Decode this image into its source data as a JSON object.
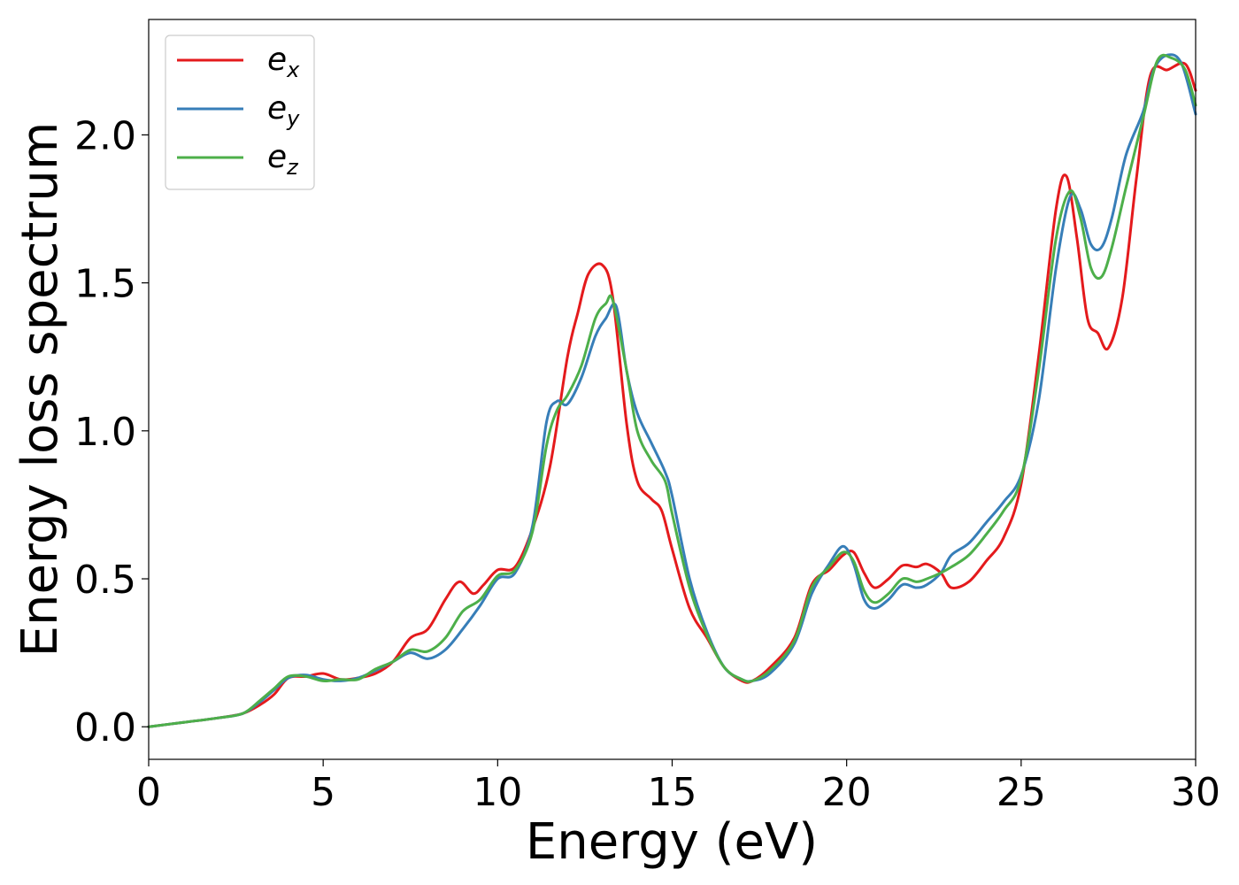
{
  "chart_data": {
    "type": "line",
    "title": "",
    "xlabel": "Energy (eV)",
    "ylabel": "Energy loss spectrum",
    "xlim": [
      0,
      30
    ],
    "ylim": [
      -0.11,
      2.39
    ],
    "xticks": [
      0,
      5,
      10,
      15,
      20,
      25,
      30
    ],
    "xtick_labels": [
      "0",
      "5",
      "10",
      "15",
      "20",
      "25",
      "30"
    ],
    "yticks": [
      0.0,
      0.5,
      1.0,
      1.5,
      2.0
    ],
    "ytick_labels": [
      "0.0",
      "0.5",
      "1.0",
      "1.5",
      "2.0"
    ],
    "grid": false,
    "legend_position": "top-left",
    "series": [
      {
        "name": "e_x",
        "label_main": "e",
        "label_sub": "x",
        "color": "#e41a1c",
        "points": [
          [
            0,
            0.0
          ],
          [
            1,
            0.015
          ],
          [
            2,
            0.03
          ],
          [
            2.7,
            0.045
          ],
          [
            3.2,
            0.075
          ],
          [
            3.6,
            0.11
          ],
          [
            4.0,
            0.165
          ],
          [
            4.5,
            0.17
          ],
          [
            5.0,
            0.18
          ],
          [
            5.5,
            0.16
          ],
          [
            6.0,
            0.165
          ],
          [
            6.5,
            0.18
          ],
          [
            7.0,
            0.22
          ],
          [
            7.5,
            0.3
          ],
          [
            8.0,
            0.33
          ],
          [
            8.5,
            0.43
          ],
          [
            8.9,
            0.49
          ],
          [
            9.3,
            0.45
          ],
          [
            9.6,
            0.48
          ],
          [
            10.0,
            0.53
          ],
          [
            10.5,
            0.54
          ],
          [
            11.0,
            0.67
          ],
          [
            11.5,
            0.88
          ],
          [
            12.0,
            1.25
          ],
          [
            12.3,
            1.4
          ],
          [
            12.6,
            1.53
          ],
          [
            13.0,
            1.56
          ],
          [
            13.3,
            1.45
          ],
          [
            13.7,
            1.02
          ],
          [
            14.0,
            0.83
          ],
          [
            14.4,
            0.77
          ],
          [
            14.7,
            0.73
          ],
          [
            15.0,
            0.6
          ],
          [
            15.5,
            0.4
          ],
          [
            16.0,
            0.3
          ],
          [
            16.5,
            0.2
          ],
          [
            17.0,
            0.155
          ],
          [
            17.3,
            0.155
          ],
          [
            17.8,
            0.2
          ],
          [
            18.5,
            0.3
          ],
          [
            19.0,
            0.48
          ],
          [
            19.5,
            0.53
          ],
          [
            19.9,
            0.58
          ],
          [
            20.2,
            0.59
          ],
          [
            20.5,
            0.52
          ],
          [
            20.8,
            0.47
          ],
          [
            21.2,
            0.5
          ],
          [
            21.6,
            0.545
          ],
          [
            22.0,
            0.54
          ],
          [
            22.3,
            0.55
          ],
          [
            22.7,
            0.52
          ],
          [
            23.0,
            0.47
          ],
          [
            23.5,
            0.49
          ],
          [
            24.0,
            0.56
          ],
          [
            24.5,
            0.64
          ],
          [
            25.0,
            0.82
          ],
          [
            25.5,
            1.25
          ],
          [
            26.0,
            1.75
          ],
          [
            26.3,
            1.86
          ],
          [
            26.6,
            1.65
          ],
          [
            26.9,
            1.38
          ],
          [
            27.2,
            1.33
          ],
          [
            27.5,
            1.28
          ],
          [
            27.9,
            1.45
          ],
          [
            28.3,
            1.85
          ],
          [
            28.7,
            2.2
          ],
          [
            29.2,
            2.22
          ],
          [
            29.7,
            2.24
          ],
          [
            30.0,
            2.15
          ]
        ]
      },
      {
        "name": "e_y",
        "label_main": "e",
        "label_sub": "y",
        "color": "#377eb8",
        "points": [
          [
            0,
            0.0
          ],
          [
            1,
            0.015
          ],
          [
            2,
            0.03
          ],
          [
            2.7,
            0.045
          ],
          [
            3.2,
            0.085
          ],
          [
            3.6,
            0.125
          ],
          [
            4.0,
            0.165
          ],
          [
            4.5,
            0.175
          ],
          [
            5.0,
            0.16
          ],
          [
            5.5,
            0.155
          ],
          [
            6.0,
            0.165
          ],
          [
            6.5,
            0.19
          ],
          [
            7.0,
            0.22
          ],
          [
            7.5,
            0.25
          ],
          [
            8.0,
            0.23
          ],
          [
            8.5,
            0.26
          ],
          [
            9.0,
            0.33
          ],
          [
            9.5,
            0.41
          ],
          [
            10.0,
            0.5
          ],
          [
            10.5,
            0.52
          ],
          [
            11.0,
            0.68
          ],
          [
            11.4,
            1.03
          ],
          [
            11.7,
            1.1
          ],
          [
            12.0,
            1.09
          ],
          [
            12.4,
            1.18
          ],
          [
            12.8,
            1.32
          ],
          [
            13.1,
            1.38
          ],
          [
            13.4,
            1.42
          ],
          [
            13.7,
            1.2
          ],
          [
            14.0,
            1.06
          ],
          [
            14.4,
            0.96
          ],
          [
            14.8,
            0.86
          ],
          [
            15.0,
            0.78
          ],
          [
            15.5,
            0.5
          ],
          [
            16.0,
            0.32
          ],
          [
            16.5,
            0.2
          ],
          [
            17.0,
            0.16
          ],
          [
            17.3,
            0.155
          ],
          [
            17.8,
            0.18
          ],
          [
            18.5,
            0.28
          ],
          [
            19.0,
            0.45
          ],
          [
            19.5,
            0.55
          ],
          [
            19.9,
            0.61
          ],
          [
            20.2,
            0.55
          ],
          [
            20.5,
            0.43
          ],
          [
            20.8,
            0.4
          ],
          [
            21.2,
            0.43
          ],
          [
            21.6,
            0.48
          ],
          [
            22.0,
            0.47
          ],
          [
            22.3,
            0.48
          ],
          [
            22.7,
            0.52
          ],
          [
            23.0,
            0.58
          ],
          [
            23.5,
            0.62
          ],
          [
            24.0,
            0.69
          ],
          [
            24.5,
            0.76
          ],
          [
            25.0,
            0.85
          ],
          [
            25.5,
            1.1
          ],
          [
            26.0,
            1.55
          ],
          [
            26.4,
            1.79
          ],
          [
            26.7,
            1.75
          ],
          [
            27.0,
            1.63
          ],
          [
            27.3,
            1.62
          ],
          [
            27.6,
            1.72
          ],
          [
            28.0,
            1.93
          ],
          [
            28.5,
            2.08
          ],
          [
            28.8,
            2.22
          ],
          [
            29.2,
            2.27
          ],
          [
            29.6,
            2.24
          ],
          [
            30.0,
            2.07
          ]
        ]
      },
      {
        "name": "e_z",
        "label_main": "e",
        "label_sub": "z",
        "color": "#4daf4a",
        "points": [
          [
            0,
            0.0
          ],
          [
            1,
            0.015
          ],
          [
            2,
            0.03
          ],
          [
            2.7,
            0.045
          ],
          [
            3.2,
            0.09
          ],
          [
            3.6,
            0.13
          ],
          [
            4.0,
            0.17
          ],
          [
            4.5,
            0.17
          ],
          [
            5.0,
            0.155
          ],
          [
            5.5,
            0.16
          ],
          [
            6.0,
            0.16
          ],
          [
            6.5,
            0.195
          ],
          [
            7.0,
            0.22
          ],
          [
            7.5,
            0.26
          ],
          [
            8.0,
            0.255
          ],
          [
            8.5,
            0.3
          ],
          [
            9.0,
            0.39
          ],
          [
            9.5,
            0.43
          ],
          [
            10.0,
            0.51
          ],
          [
            10.5,
            0.53
          ],
          [
            11.0,
            0.66
          ],
          [
            11.4,
            0.95
          ],
          [
            11.7,
            1.07
          ],
          [
            12.0,
            1.12
          ],
          [
            12.4,
            1.22
          ],
          [
            12.8,
            1.38
          ],
          [
            13.1,
            1.43
          ],
          [
            13.3,
            1.44
          ],
          [
            13.7,
            1.2
          ],
          [
            14.0,
            1.0
          ],
          [
            14.4,
            0.9
          ],
          [
            14.8,
            0.83
          ],
          [
            15.0,
            0.72
          ],
          [
            15.5,
            0.47
          ],
          [
            16.0,
            0.31
          ],
          [
            16.5,
            0.2
          ],
          [
            17.0,
            0.16
          ],
          [
            17.3,
            0.155
          ],
          [
            17.8,
            0.19
          ],
          [
            18.5,
            0.29
          ],
          [
            19.0,
            0.47
          ],
          [
            19.5,
            0.54
          ],
          [
            19.9,
            0.59
          ],
          [
            20.2,
            0.56
          ],
          [
            20.5,
            0.46
          ],
          [
            20.8,
            0.42
          ],
          [
            21.2,
            0.45
          ],
          [
            21.6,
            0.5
          ],
          [
            22.0,
            0.49
          ],
          [
            22.3,
            0.5
          ],
          [
            22.7,
            0.52
          ],
          [
            23.0,
            0.54
          ],
          [
            23.5,
            0.58
          ],
          [
            24.0,
            0.65
          ],
          [
            24.5,
            0.73
          ],
          [
            25.0,
            0.84
          ],
          [
            25.5,
            1.2
          ],
          [
            26.0,
            1.65
          ],
          [
            26.4,
            1.81
          ],
          [
            26.7,
            1.72
          ],
          [
            27.0,
            1.55
          ],
          [
            27.3,
            1.52
          ],
          [
            27.6,
            1.62
          ],
          [
            28.0,
            1.82
          ],
          [
            28.5,
            2.06
          ],
          [
            28.9,
            2.25
          ],
          [
            29.3,
            2.26
          ],
          [
            29.7,
            2.22
          ],
          [
            30.0,
            2.1
          ]
        ]
      }
    ]
  }
}
